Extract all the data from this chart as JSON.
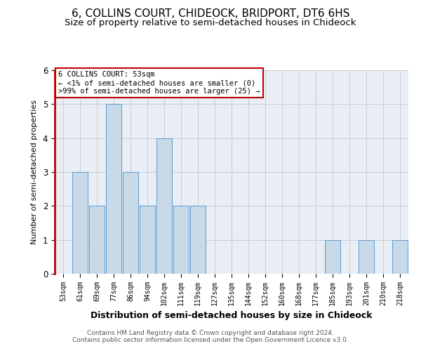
{
  "title": "6, COLLINS COURT, CHIDEOCK, BRIDPORT, DT6 6HS",
  "subtitle": "Size of property relative to semi-detached houses in Chideock",
  "xlabel": "Distribution of semi-detached houses by size in Chideock",
  "ylabel": "Number of semi-detached properties",
  "annotation_title": "6 COLLINS COURT: 53sqm",
  "annotation_line2": "← <1% of semi-detached houses are smaller (0)",
  "annotation_line3": ">99% of semi-detached houses are larger (25) →",
  "bins": [
    "53sqm",
    "61sqm",
    "69sqm",
    "77sqm",
    "86sqm",
    "94sqm",
    "102sqm",
    "111sqm",
    "119sqm",
    "127sqm",
    "135sqm",
    "144sqm",
    "152sqm",
    "160sqm",
    "168sqm",
    "177sqm",
    "185sqm",
    "193sqm",
    "201sqm",
    "210sqm",
    "218sqm"
  ],
  "values": [
    0,
    3,
    2,
    5,
    3,
    2,
    4,
    2,
    2,
    0,
    0,
    0,
    0,
    0,
    0,
    0,
    1,
    0,
    1,
    0,
    1
  ],
  "bar_color": "#c8d9e8",
  "bar_edge_color": "#5b9bd5",
  "highlight_color": "#c00000",
  "ylim": [
    0,
    6
  ],
  "yticks": [
    0,
    1,
    2,
    3,
    4,
    5,
    6
  ],
  "grid_color": "#c8cdd4",
  "bg_color": "#e8eef4",
  "title_fontsize": 11,
  "subtitle_fontsize": 9.5,
  "footer1": "Contains HM Land Registry data © Crown copyright and database right 2024.",
  "footer2": "Contains public sector information licensed under the Open Government Licence v3.0."
}
